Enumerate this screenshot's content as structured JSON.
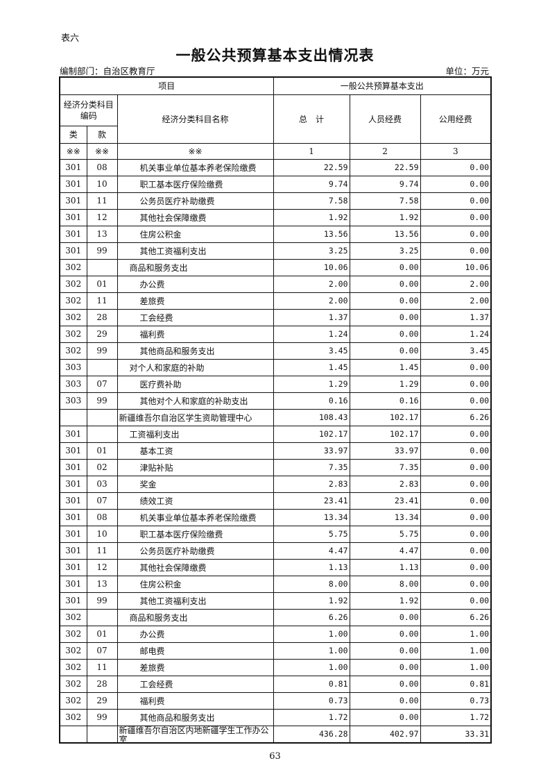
{
  "table_label": "表六",
  "title": "一般公共预算基本支出情况表",
  "department": "编制部门：自治区教育厅",
  "unit": "单位：万元",
  "header": {
    "project": "项目",
    "budget_group": "一般公共预算基本支出",
    "code_group": "经济分类科目编码",
    "name_col": "经济分类科目名称",
    "total": "总　计",
    "personnel": "人员经费",
    "public": "公用经费",
    "class": "类",
    "item": "款",
    "idx": [
      "※※",
      "※※",
      "※※",
      "1",
      "2",
      "3"
    ]
  },
  "rows": [
    {
      "lei": "301",
      "kuan": "08",
      "name": "机关事业单位基本养老保险缴费",
      "total": "22.59",
      "personnel": "22.59",
      "public": "0.00"
    },
    {
      "lei": "301",
      "kuan": "10",
      "name": "职工基本医疗保险缴费",
      "total": "9.74",
      "personnel": "9.74",
      "public": "0.00"
    },
    {
      "lei": "301",
      "kuan": "11",
      "name": "公务员医疗补助缴费",
      "total": "7.58",
      "personnel": "7.58",
      "public": "0.00"
    },
    {
      "lei": "301",
      "kuan": "12",
      "name": "其他社会保障缴费",
      "total": "1.92",
      "personnel": "1.92",
      "public": "0.00"
    },
    {
      "lei": "301",
      "kuan": "13",
      "name": "住房公积金",
      "total": "13.56",
      "personnel": "13.56",
      "public": "0.00"
    },
    {
      "lei": "301",
      "kuan": "99",
      "name": "其他工资福利支出",
      "total": "3.25",
      "personnel": "3.25",
      "public": "0.00"
    },
    {
      "lei": "302",
      "kuan": "",
      "name": "商品和服务支出",
      "total": "10.06",
      "personnel": "0.00",
      "public": "10.06"
    },
    {
      "lei": "302",
      "kuan": "01",
      "name": "办公费",
      "total": "2.00",
      "personnel": "0.00",
      "public": "2.00"
    },
    {
      "lei": "302",
      "kuan": "11",
      "name": "差旅费",
      "total": "2.00",
      "personnel": "0.00",
      "public": "2.00"
    },
    {
      "lei": "302",
      "kuan": "28",
      "name": "工会经费",
      "total": "1.37",
      "personnel": "0.00",
      "public": "1.37"
    },
    {
      "lei": "302",
      "kuan": "29",
      "name": "福利费",
      "total": "1.24",
      "personnel": "0.00",
      "public": "1.24"
    },
    {
      "lei": "302",
      "kuan": "99",
      "name": "其他商品和服务支出",
      "total": "3.45",
      "personnel": "0.00",
      "public": "3.45"
    },
    {
      "lei": "303",
      "kuan": "",
      "name": "对个人和家庭的补助",
      "total": "1.45",
      "personnel": "1.45",
      "public": "0.00"
    },
    {
      "lei": "303",
      "kuan": "07",
      "name": "医疗费补助",
      "total": "1.29",
      "personnel": "1.29",
      "public": "0.00"
    },
    {
      "lei": "303",
      "kuan": "99",
      "name": "其他对个人和家庭的补助支出",
      "total": "0.16",
      "personnel": "0.16",
      "public": "0.00"
    },
    {
      "lei": "",
      "kuan": "",
      "name": "新疆维吾尔自治区学生资助管理中心",
      "total": "108.43",
      "personnel": "102.17",
      "public": "6.26"
    },
    {
      "lei": "301",
      "kuan": "",
      "name": "工资福利支出",
      "total": "102.17",
      "personnel": "102.17",
      "public": "0.00"
    },
    {
      "lei": "301",
      "kuan": "01",
      "name": "基本工资",
      "total": "33.97",
      "personnel": "33.97",
      "public": "0.00"
    },
    {
      "lei": "301",
      "kuan": "02",
      "name": "津贴补贴",
      "total": "7.35",
      "personnel": "7.35",
      "public": "0.00"
    },
    {
      "lei": "301",
      "kuan": "03",
      "name": "奖金",
      "total": "2.83",
      "personnel": "2.83",
      "public": "0.00"
    },
    {
      "lei": "301",
      "kuan": "07",
      "name": "绩效工资",
      "total": "23.41",
      "personnel": "23.41",
      "public": "0.00"
    },
    {
      "lei": "301",
      "kuan": "08",
      "name": "机关事业单位基本养老保险缴费",
      "total": "13.34",
      "personnel": "13.34",
      "public": "0.00"
    },
    {
      "lei": "301",
      "kuan": "10",
      "name": "职工基本医疗保险缴费",
      "total": "5.75",
      "personnel": "5.75",
      "public": "0.00"
    },
    {
      "lei": "301",
      "kuan": "11",
      "name": "公务员医疗补助缴费",
      "total": "4.47",
      "personnel": "4.47",
      "public": "0.00"
    },
    {
      "lei": "301",
      "kuan": "12",
      "name": "其他社会保障缴费",
      "total": "1.13",
      "personnel": "1.13",
      "public": "0.00"
    },
    {
      "lei": "301",
      "kuan": "13",
      "name": "住房公积金",
      "total": "8.00",
      "personnel": "8.00",
      "public": "0.00"
    },
    {
      "lei": "301",
      "kuan": "99",
      "name": "其他工资福利支出",
      "total": "1.92",
      "personnel": "1.92",
      "public": "0.00"
    },
    {
      "lei": "302",
      "kuan": "",
      "name": "商品和服务支出",
      "total": "6.26",
      "personnel": "0.00",
      "public": "6.26"
    },
    {
      "lei": "302",
      "kuan": "01",
      "name": "办公费",
      "total": "1.00",
      "personnel": "0.00",
      "public": "1.00"
    },
    {
      "lei": "302",
      "kuan": "07",
      "name": "邮电费",
      "total": "1.00",
      "personnel": "0.00",
      "public": "1.00"
    },
    {
      "lei": "302",
      "kuan": "11",
      "name": "差旅费",
      "total": "1.00",
      "personnel": "0.00",
      "public": "1.00"
    },
    {
      "lei": "302",
      "kuan": "28",
      "name": "工会经费",
      "total": "0.81",
      "personnel": "0.00",
      "public": "0.81"
    },
    {
      "lei": "302",
      "kuan": "29",
      "name": "福利费",
      "total": "0.73",
      "personnel": "0.00",
      "public": "0.73"
    },
    {
      "lei": "302",
      "kuan": "99",
      "name": "其他商品和服务支出",
      "total": "1.72",
      "personnel": "0.00",
      "public": "1.72"
    },
    {
      "lei": "",
      "kuan": "",
      "name": "新疆维吾尔自治区内地新疆学生工作办公室",
      "total": "436.28",
      "personnel": "402.97",
      "public": "33.31"
    }
  ],
  "page_number": "63"
}
